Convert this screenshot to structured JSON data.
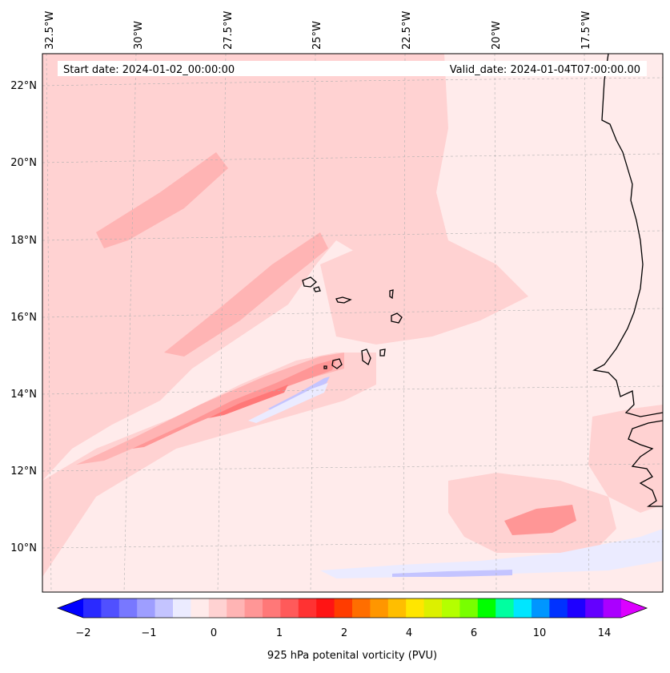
{
  "header": {
    "start_date": "Start date: 2024-01-02_00:00:00",
    "valid_date": "Valid_date: 2024-01-04T07:00:00.00"
  },
  "map": {
    "longitude_labels": [
      "32.5°W",
      "30°W",
      "27.5°W",
      "25°W",
      "22.5°W",
      "20°W",
      "17.5°W"
    ],
    "latitude_labels": [
      "22°N",
      "20°N",
      "18°N",
      "16°N",
      "14°N",
      "12°N",
      "10°N"
    ],
    "field": "925 hPa potential vorticity",
    "features": [
      "coastline-west-africa",
      "cape-verde-islands"
    ]
  },
  "colorbar": {
    "label": "925 hPa potenital vorticity (PVU)",
    "tick_labels": [
      "−2",
      "−1",
      "0",
      "1",
      "2",
      "4",
      "6",
      "10",
      "14"
    ],
    "colors": [
      "#0000ff",
      "#2a2aff",
      "#5050ff",
      "#7878ff",
      "#9e9eff",
      "#c4c4ff",
      "#ebebff",
      "#ffebeb",
      "#ffd2d2",
      "#ffb4b4",
      "#ff9696",
      "#ff7878",
      "#ff5a5a",
      "#ff3232",
      "#ff1414",
      "#ff3c00",
      "#ff6e00",
      "#ff9600",
      "#ffbe00",
      "#ffe600",
      "#dcf000",
      "#b4ff00",
      "#78ff00",
      "#00ff00",
      "#00ffa0",
      "#00e6ff",
      "#0096ff",
      "#0032ff",
      "#1e00ff",
      "#6400ff",
      "#aa00ff",
      "#dc00ff"
    ]
  }
}
